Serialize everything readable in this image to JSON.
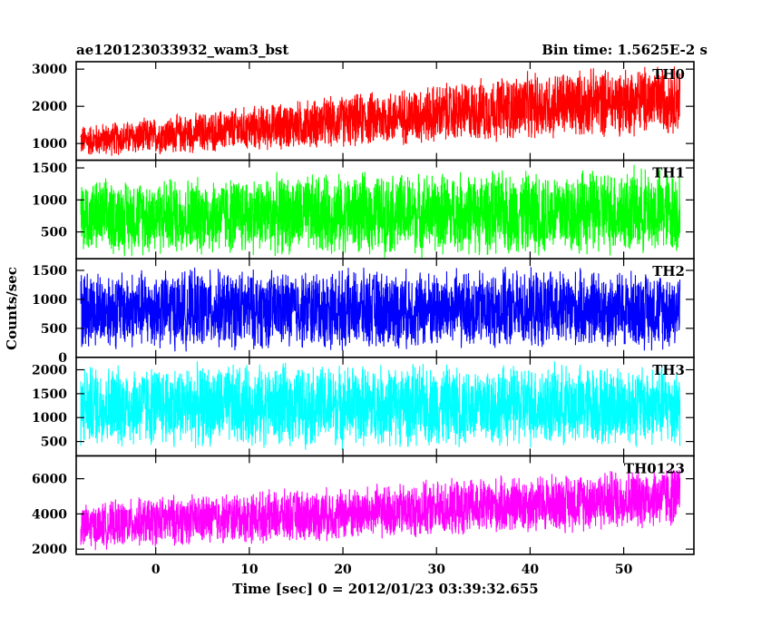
{
  "header": {
    "left": "ae120123033932_wam3_bst",
    "right": "Bin time: 1.5625E-2 s"
  },
  "chart_data": {
    "type": "line",
    "xlabel": "Time [sec] 0 = 2012/01/23 03:39:32.655",
    "ylabel": "Counts/sec",
    "xlim": [
      -8.5,
      57.5
    ],
    "data_x_range": [
      -8,
      56
    ],
    "xticks": [
      0,
      10,
      20,
      30,
      40,
      50
    ],
    "bin_time_s": 0.015625,
    "panels": [
      {
        "name": "TH0",
        "color": "#ff0000",
        "ylim": [
          550,
          3200
        ],
        "yticks": [
          1000,
          2000,
          3000
        ],
        "trend": {
          "x": [
            -8,
            0,
            20,
            40,
            56
          ],
          "low": [
            650,
            700,
            900,
            1100,
            1300
          ],
          "high": [
            1500,
            1700,
            2300,
            2900,
            3150
          ]
        }
      },
      {
        "name": "TH1",
        "color": "#00ff00",
        "ylim": [
          80,
          1620
        ],
        "yticks": [
          500,
          1000,
          1500
        ],
        "trend": {
          "x": [
            -8,
            0,
            20,
            40,
            56
          ],
          "low": [
            150,
            150,
            150,
            150,
            150
          ],
          "high": [
            1300,
            1350,
            1400,
            1450,
            1500
          ]
        }
      },
      {
        "name": "TH2",
        "color": "#0000ff",
        "ylim": [
          0,
          1700
        ],
        "yticks": [
          0,
          500,
          1000,
          1500
        ],
        "trend": {
          "x": [
            -8,
            0,
            20,
            40,
            56
          ],
          "low": [
            150,
            150,
            150,
            150,
            150
          ],
          "high": [
            1500,
            1500,
            1500,
            1500,
            1500
          ]
        }
      },
      {
        "name": "TH3",
        "color": "#00ffff",
        "ylim": [
          200,
          2260
        ],
        "yticks": [
          500,
          1000,
          1500,
          2000
        ],
        "trend": {
          "x": [
            -8,
            0,
            20,
            40,
            56
          ],
          "low": [
            400,
            400,
            400,
            400,
            400
          ],
          "high": [
            2100,
            2100,
            2100,
            2100,
            2100
          ]
        }
      },
      {
        "name": "TH0123",
        "color": "#ff00ff",
        "ylim": [
          1700,
          7300
        ],
        "yticks": [
          2000,
          4000,
          6000
        ],
        "trend": {
          "x": [
            -8,
            0,
            20,
            40,
            56
          ],
          "low": [
            2000,
            2200,
            2500,
            2900,
            3300
          ],
          "high": [
            4500,
            5000,
            5500,
            6200,
            6800
          ]
        }
      }
    ]
  }
}
